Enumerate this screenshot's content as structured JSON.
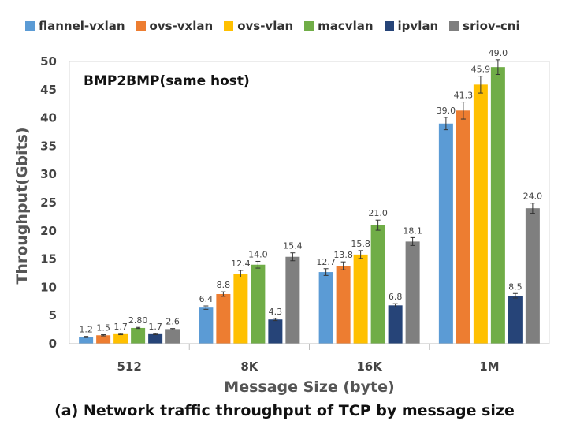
{
  "chart_data": {
    "type": "bar",
    "title": "BMP2BMP(same host)",
    "xlabel": "Message Size (byte)",
    "ylabel": "Throughput(Gbits)",
    "ylim": [
      0,
      50
    ],
    "yticks": [
      0,
      5,
      10,
      15,
      20,
      25,
      30,
      35,
      40,
      45,
      50
    ],
    "categories": [
      "512",
      "8K",
      "16K",
      "1M"
    ],
    "legend_position": "top",
    "series": [
      {
        "name": "flannel-vxlan",
        "color": "#5B9BD5",
        "values": [
          1.2,
          6.4,
          12.7,
          39.0
        ],
        "labels": [
          "1.2",
          "6.4",
          "12.7",
          "39.0"
        ],
        "errors": [
          0.1,
          0.3,
          0.6,
          1.1
        ]
      },
      {
        "name": "ovs-vxlan",
        "color": "#ED7D31",
        "values": [
          1.5,
          8.8,
          13.8,
          41.3
        ],
        "labels": [
          "1.5",
          "8.8",
          "13.8",
          "41.3"
        ],
        "errors": [
          0.1,
          0.4,
          0.7,
          1.5
        ]
      },
      {
        "name": "ovs-vlan",
        "color": "#FFC000",
        "values": [
          1.7,
          12.4,
          15.8,
          45.9
        ],
        "labels": [
          "1.7",
          "12.4",
          "15.8",
          "45.9"
        ],
        "errors": [
          0.1,
          0.6,
          0.7,
          1.5
        ]
      },
      {
        "name": "macvlan",
        "color": "#70AD47",
        "values": [
          2.8,
          14.0,
          21.0,
          49.0
        ],
        "labels": [
          "2.80",
          "14.0",
          "21.0",
          "49.0"
        ],
        "errors": [
          0.1,
          0.6,
          0.9,
          1.3
        ]
      },
      {
        "name": "ipvlan",
        "color": "#264478",
        "values": [
          1.7,
          4.3,
          6.8,
          8.5
        ],
        "labels": [
          "1.7",
          "4.3",
          "6.8",
          "8.5"
        ],
        "errors": [
          0.1,
          0.2,
          0.3,
          0.4
        ]
      },
      {
        "name": "sriov-cni",
        "color": "#7F7F7F",
        "values": [
          2.6,
          15.4,
          18.1,
          24.0
        ],
        "labels": [
          "2.6",
          "15.4",
          "18.1",
          "24.0"
        ],
        "errors": [
          0.1,
          0.7,
          0.7,
          0.9
        ]
      }
    ]
  },
  "caption": "(a) Network traffic throughput of TCP by message size"
}
